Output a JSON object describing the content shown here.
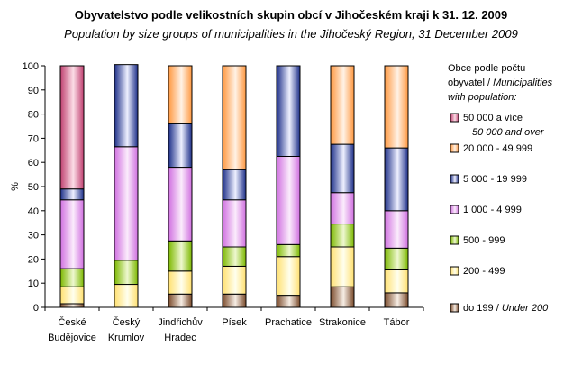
{
  "chart_data": {
    "type": "bar",
    "stacked": true,
    "title": "Obyvatelstvo podle velikostních skupin obcí v Jihočeském kraji k 31. 12. 2009",
    "subtitle": "Population by size groups of municipalities in the Jihočeský Region, 31 December 2009",
    "ylabel": "%",
    "ylim": [
      0,
      100
    ],
    "yticks": [
      0,
      10,
      20,
      30,
      40,
      50,
      60,
      70,
      80,
      90,
      100
    ],
    "grid": false,
    "legend_position": "right",
    "categories": [
      [
        "České",
        "Budějovice"
      ],
      [
        "Český",
        "Krumlov"
      ],
      [
        "Jindřichův",
        "Hradec"
      ],
      [
        "Písek",
        ""
      ],
      [
        "Prachatice",
        ""
      ],
      [
        "Strakonice",
        ""
      ],
      [
        "Tábor",
        ""
      ]
    ],
    "series": [
      {
        "name": "do 199 / ",
        "name_en": "Under 200",
        "color": "#7a4a2a",
        "light": "#f6ede4",
        "values": [
          1.5,
          0,
          5.5,
          5.5,
          5,
          8.5,
          6
        ]
      },
      {
        "name": "200 - 499",
        "name_en": "",
        "color": "#ffe070",
        "light": "#ffffee",
        "values": [
          7,
          9.5,
          9.5,
          11.5,
          16,
          16.5,
          9.5
        ]
      },
      {
        "name": "500 - 999",
        "name_en": "",
        "color": "#7cb800",
        "light": "#eef8d0",
        "values": [
          7.5,
          10,
          12.5,
          8,
          5,
          9.5,
          9
        ]
      },
      {
        "name": "1 000 - 4 999",
        "name_en": "",
        "color": "#d070e0",
        "light": "#fbecfc",
        "values": [
          28.5,
          47,
          30.5,
          19.5,
          36.5,
          13,
          15.5
        ]
      },
      {
        "name": "5 000 - 19 999",
        "name_en": "",
        "color": "#1c2e88",
        "light": "#eef0ff",
        "values": [
          4.5,
          34,
          18,
          12.5,
          37.5,
          20,
          26
        ]
      },
      {
        "name": "20 000 - 49 999",
        "name_en": "",
        "color": "#ff9840",
        "light": "#fff2e6",
        "values": [
          0,
          0,
          24,
          43,
          0,
          32.5,
          34
        ]
      },
      {
        "name": "50 000  a více",
        "name_en": "50 000 and over",
        "color": "#c04070",
        "light": "#fbdde6",
        "values": [
          51,
          0,
          0,
          0,
          0,
          0,
          0
        ]
      }
    ]
  },
  "legend": {
    "title_line1": "Obce podle počtu",
    "title_line2_cz": "obyvatel / ",
    "title_line2_en": "Municipalities",
    "title_line3_en": "with population:"
  }
}
